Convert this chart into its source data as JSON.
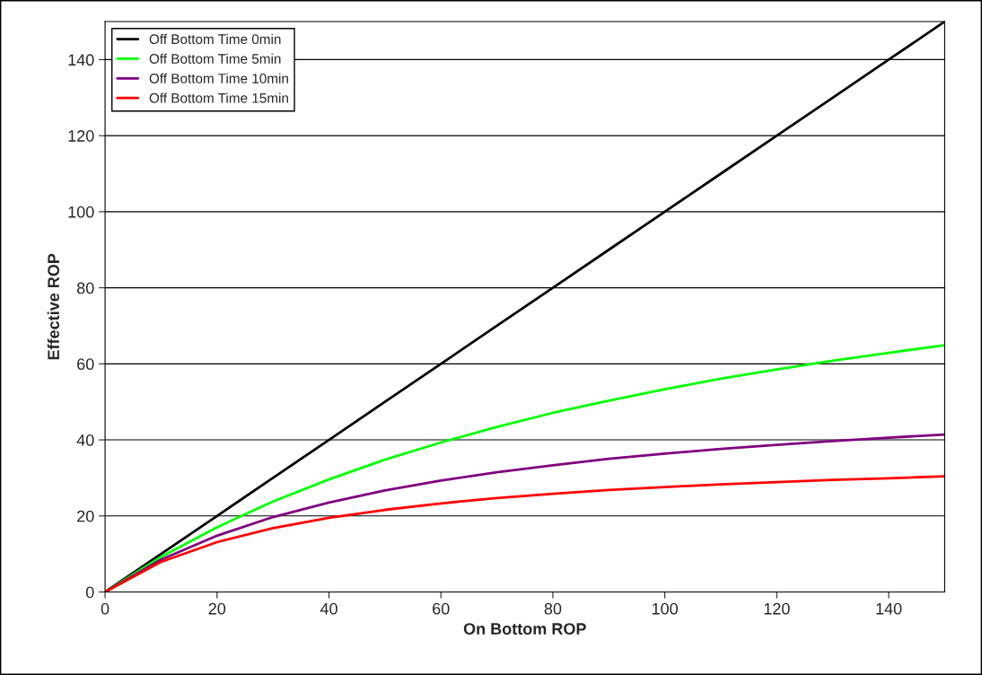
{
  "chart_data": {
    "type": "line",
    "xlabel": "On Bottom ROP",
    "ylabel": "Effective ROP",
    "x": [
      0,
      10,
      20,
      30,
      40,
      50,
      60,
      70,
      80,
      90,
      100,
      110,
      120,
      130,
      140,
      150
    ],
    "series": [
      {
        "name": "Off Bottom Time 0min",
        "color": "#000000",
        "values": [
          0,
          10,
          20,
          30,
          40,
          50,
          60,
          70,
          80,
          90,
          100,
          110,
          120,
          130,
          140,
          150
        ]
      },
      {
        "name": "Off Bottom Time 5min",
        "color": "#00ff00",
        "values": [
          0,
          9.2,
          17.0,
          23.8,
          29.6,
          34.8,
          39.3,
          43.4,
          47.1,
          50.3,
          53.3,
          56.1,
          58.5,
          60.8,
          62.9,
          64.9
        ]
      },
      {
        "name": "Off Bottom Time 10min",
        "color": "#800080",
        "values": [
          0,
          8.5,
          14.8,
          19.7,
          23.5,
          26.7,
          29.3,
          31.5,
          33.3,
          35.0,
          36.4,
          37.6,
          38.7,
          39.7,
          40.6,
          41.4
        ]
      },
      {
        "name": "Off Bottom Time 15min",
        "color": "#ff0000",
        "values": [
          0,
          7.9,
          13.1,
          16.8,
          19.5,
          21.6,
          23.3,
          24.7,
          25.8,
          26.8,
          27.6,
          28.3,
          28.9,
          29.5,
          29.9,
          30.4
        ]
      }
    ],
    "xlim": [
      0,
      150
    ],
    "xticks": [
      0,
      20,
      40,
      60,
      80,
      100,
      120,
      140
    ],
    "ylim": [
      0,
      150
    ],
    "yticks": [
      0,
      20,
      40,
      60,
      80,
      100,
      120,
      140
    ],
    "grid": "y",
    "legend": "top left"
  }
}
